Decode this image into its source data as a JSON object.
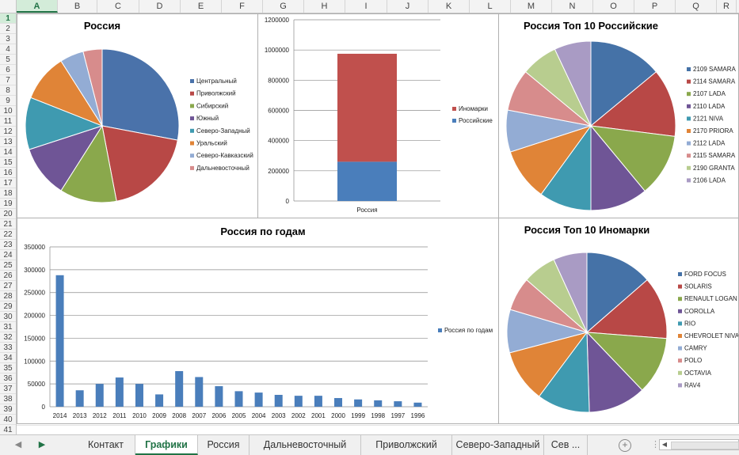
{
  "columns": [
    "A",
    "B",
    "C",
    "D",
    "E",
    "F",
    "G",
    "H",
    "I",
    "J",
    "K",
    "L",
    "M",
    "N",
    "O",
    "P",
    "Q",
    "R"
  ],
  "selected_column": "A",
  "selected_row": "1",
  "rows": [
    "1",
    "2",
    "3",
    "4",
    "5",
    "6",
    "7",
    "8",
    "9",
    "10",
    "11",
    "12",
    "13",
    "14",
    "15",
    "16",
    "17",
    "18",
    "19",
    "20",
    "21",
    "22",
    "23",
    "24",
    "25",
    "26",
    "27",
    "28",
    "29",
    "30",
    "31",
    "32",
    "33",
    "34",
    "35",
    "36",
    "37",
    "38",
    "39",
    "40",
    "41"
  ],
  "charts": {
    "russia_regions": {
      "type": "pie",
      "title": "Россия",
      "categories": [
        "Центральный",
        "Приволжский",
        "Сибирский",
        "Южный",
        "Северо-Западный",
        "Уральский",
        "Северо-Кавказский",
        "Дальневосточный"
      ],
      "values": [
        28,
        19,
        12,
        11,
        11,
        10,
        5,
        4
      ],
      "colors": [
        "#4a72aa",
        "#b84846",
        "#8aa84c",
        "#6f5596",
        "#3f9ab0",
        "#e08437",
        "#93acd4",
        "#d78c8c"
      ]
    },
    "russia_stacked": {
      "type": "stacked-bar",
      "title": "",
      "categories": [
        "Россия"
      ],
      "series": [
        {
          "name": "Российские",
          "values": [
            260000
          ],
          "color": "#4a7ebb"
        },
        {
          "name": "Иномарки",
          "values": [
            715000
          ],
          "color": "#c0504d"
        }
      ],
      "ylim": [
        0,
        1200000
      ],
      "yticks": [
        "0",
        "200000",
        "400000",
        "600000",
        "800000",
        "1000000",
        "1200000"
      ],
      "legend": [
        "Иномарки",
        "Российские"
      ]
    },
    "russia_top10_domestic": {
      "type": "pie",
      "title": "Россия Топ 10 Российские",
      "categories": [
        "2109 SAMARA",
        "2114 SAMARA",
        "2107 LADA",
        "2110 LADA",
        "2121 NIVA",
        "2170 PRIORA",
        "2112 LADA",
        "2115 SAMARA",
        "2190 GRANTA",
        "2106 LADA"
      ],
      "values": [
        14,
        13,
        12,
        11,
        10,
        10,
        8,
        8,
        7,
        7
      ],
      "colors": [
        "#4572a7",
        "#b84846",
        "#8aa84c",
        "#6f5596",
        "#3f9ab0",
        "#e08437",
        "#93acd4",
        "#d78c8c",
        "#b8cd8f",
        "#a99bc4"
      ]
    },
    "russia_by_year": {
      "type": "bar",
      "title": "Россия по годам",
      "categories": [
        "2014",
        "2013",
        "2012",
        "2011",
        "2010",
        "2009",
        "2008",
        "2007",
        "2006",
        "2005",
        "2004",
        "2003",
        "2002",
        "2001",
        "2000",
        "1999",
        "1998",
        "1997",
        "1996"
      ],
      "series": [
        {
          "name": "Россия по годам",
          "values": [
            288000,
            36000,
            50000,
            64000,
            50000,
            27000,
            78000,
            65000,
            45000,
            34000,
            31000,
            26000,
            24000,
            24000,
            19000,
            16000,
            14000,
            12000,
            9000
          ],
          "color": "#4a7ebb"
        }
      ],
      "ylim": [
        0,
        350000
      ],
      "yticks": [
        "0",
        "50000",
        "100000",
        "150000",
        "200000",
        "250000",
        "300000",
        "350000"
      ],
      "legend": [
        "Россия по годам"
      ]
    },
    "russia_top10_foreign": {
      "type": "pie",
      "title": "Россия Топ 10 Иномарки",
      "categories": [
        "FORD FOCUS",
        "SOLARIS",
        "RENAULT LOGAN",
        "COROLLA",
        "RIO",
        "CHEVROLET NIVA",
        "CAMRY",
        "POLO",
        "OCTAVIA",
        "RAV4"
      ],
      "values": [
        14,
        13,
        12,
        12,
        11,
        11,
        9,
        7,
        7,
        7
      ],
      "colors": [
        "#4572a7",
        "#b84846",
        "#8aa84c",
        "#6f5596",
        "#3f9ab0",
        "#e08437",
        "#93acd4",
        "#d78c8c",
        "#b8cd8f",
        "#a99bc4"
      ]
    }
  },
  "tabs": [
    {
      "label": "Контакт",
      "active": false
    },
    {
      "label": "Графики",
      "active": true
    },
    {
      "label": "Россия",
      "active": false
    },
    {
      "label": "Дальневосточный",
      "active": false
    },
    {
      "label": "Приволжский",
      "active": false
    },
    {
      "label": "Северо-Западный",
      "active": false
    },
    {
      "label": "Сев ...",
      "active": false
    }
  ],
  "tabbar": {
    "prev_icon": "◀",
    "next_icon": "▶",
    "add_icon": "+",
    "scroll_left_icon": "◀",
    "sep": "⋮"
  }
}
